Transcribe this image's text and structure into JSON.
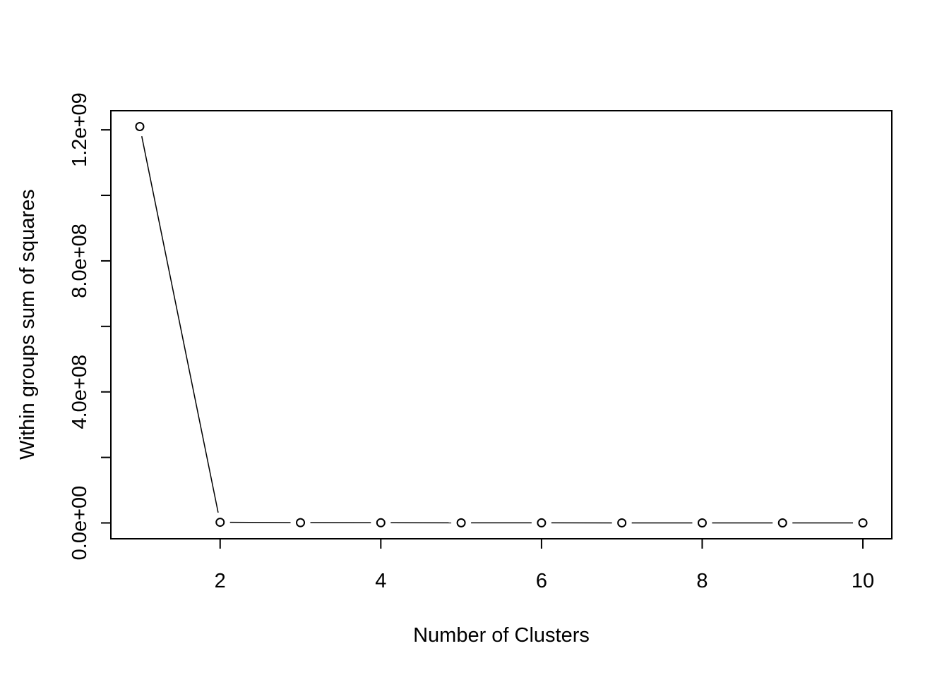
{
  "chart_data": {
    "type": "line",
    "title": "",
    "xlabel": "Number of Clusters",
    "ylabel": "Within groups sum of squares",
    "x": [
      1,
      2,
      3,
      4,
      5,
      6,
      7,
      8,
      9,
      10
    ],
    "series": [
      {
        "values": [
          1210000000,
          2000000,
          800000,
          500000,
          300000,
          200000,
          150000,
          100000,
          80000,
          60000
        ]
      }
    ],
    "x_ticks": [
      2,
      4,
      6,
      8,
      10
    ],
    "x_tick_labels": [
      "2",
      "4",
      "6",
      "8",
      "10"
    ],
    "y_ticks": [
      0,
      200000000,
      400000000,
      600000000,
      800000000,
      1000000000,
      1200000000
    ],
    "y_tick_labels": [
      "0.0e+00",
      "",
      "4.0e+08",
      "",
      "8.0e+08",
      "",
      "1.2e+09"
    ],
    "xlim": [
      0.64,
      10.36
    ],
    "ylim": [
      -48400000,
      1258400000
    ],
    "marker": "open-circle",
    "grid": false,
    "legend": "none",
    "colors": {
      "line": "#000000",
      "marker_fill": "#ffffff",
      "background": "#ffffff"
    }
  }
}
